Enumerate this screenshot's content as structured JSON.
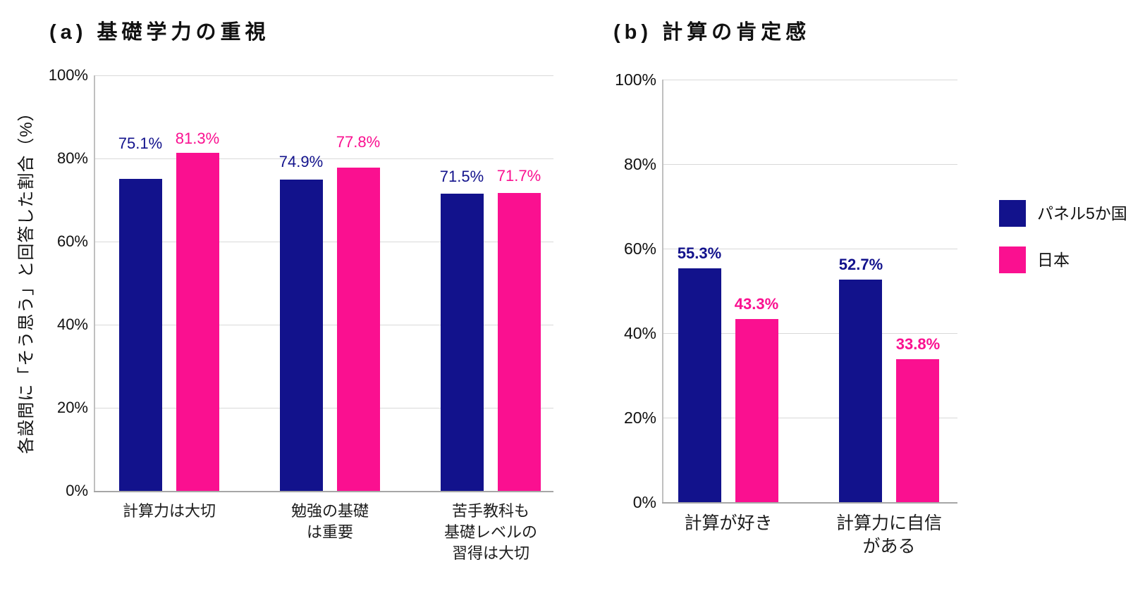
{
  "colors": {
    "series_panel5": "#12128C",
    "series_japan": "#FA1090",
    "grid": "#D9D9D9",
    "axis_bottom": "#A6A6A6",
    "axis_left": "#BFBFBF",
    "text": "#111111"
  },
  "legend": {
    "items": [
      {
        "label": "パネル5か国",
        "color": "#12128C"
      },
      {
        "label": "日本",
        "color": "#FA1090"
      }
    ]
  },
  "chart_data": [
    {
      "type": "bar",
      "panel": "a",
      "title": "(a) 基礎学力の重視",
      "ylabel": "各設問に「そう思う」と回答した割合（%）",
      "xlabel": "",
      "ylim": [
        0,
        100
      ],
      "yticks": [
        0,
        20,
        40,
        60,
        80,
        100
      ],
      "ytick_labels": [
        "0%",
        "20%",
        "40%",
        "60%",
        "80%",
        "100%"
      ],
      "grid": true,
      "legend_position": "none",
      "categories": [
        "計算力は大切",
        "勉強の基礎\nは重要",
        "苦手教科も\n基礎レベルの\n習得は大切"
      ],
      "series": [
        {
          "name": "パネル5か国",
          "values": [
            75.1,
            74.9,
            71.5
          ],
          "labels": [
            "75.1%",
            "74.9%",
            "71.5%"
          ]
        },
        {
          "name": "日本",
          "values": [
            81.3,
            77.8,
            71.7
          ],
          "labels": [
            "81.3%",
            "77.8%",
            "71.7%"
          ]
        }
      ]
    },
    {
      "type": "bar",
      "panel": "b",
      "title": "(b) 計算の肯定感",
      "ylabel": "",
      "xlabel": "",
      "ylim": [
        0,
        100
      ],
      "yticks": [
        0,
        20,
        40,
        60,
        80,
        100
      ],
      "ytick_labels": [
        "0%",
        "20%",
        "40%",
        "60%",
        "80%",
        "100%"
      ],
      "grid": true,
      "legend_position": "right",
      "categories": [
        "計算が好き",
        "計算力に自信\nがある"
      ],
      "series": [
        {
          "name": "パネル5か国",
          "values": [
            55.3,
            52.7
          ],
          "labels": [
            "55.3%",
            "52.7%"
          ]
        },
        {
          "name": "日本",
          "values": [
            43.3,
            33.8
          ],
          "labels": [
            "43.3%",
            "33.8%"
          ]
        }
      ]
    }
  ]
}
